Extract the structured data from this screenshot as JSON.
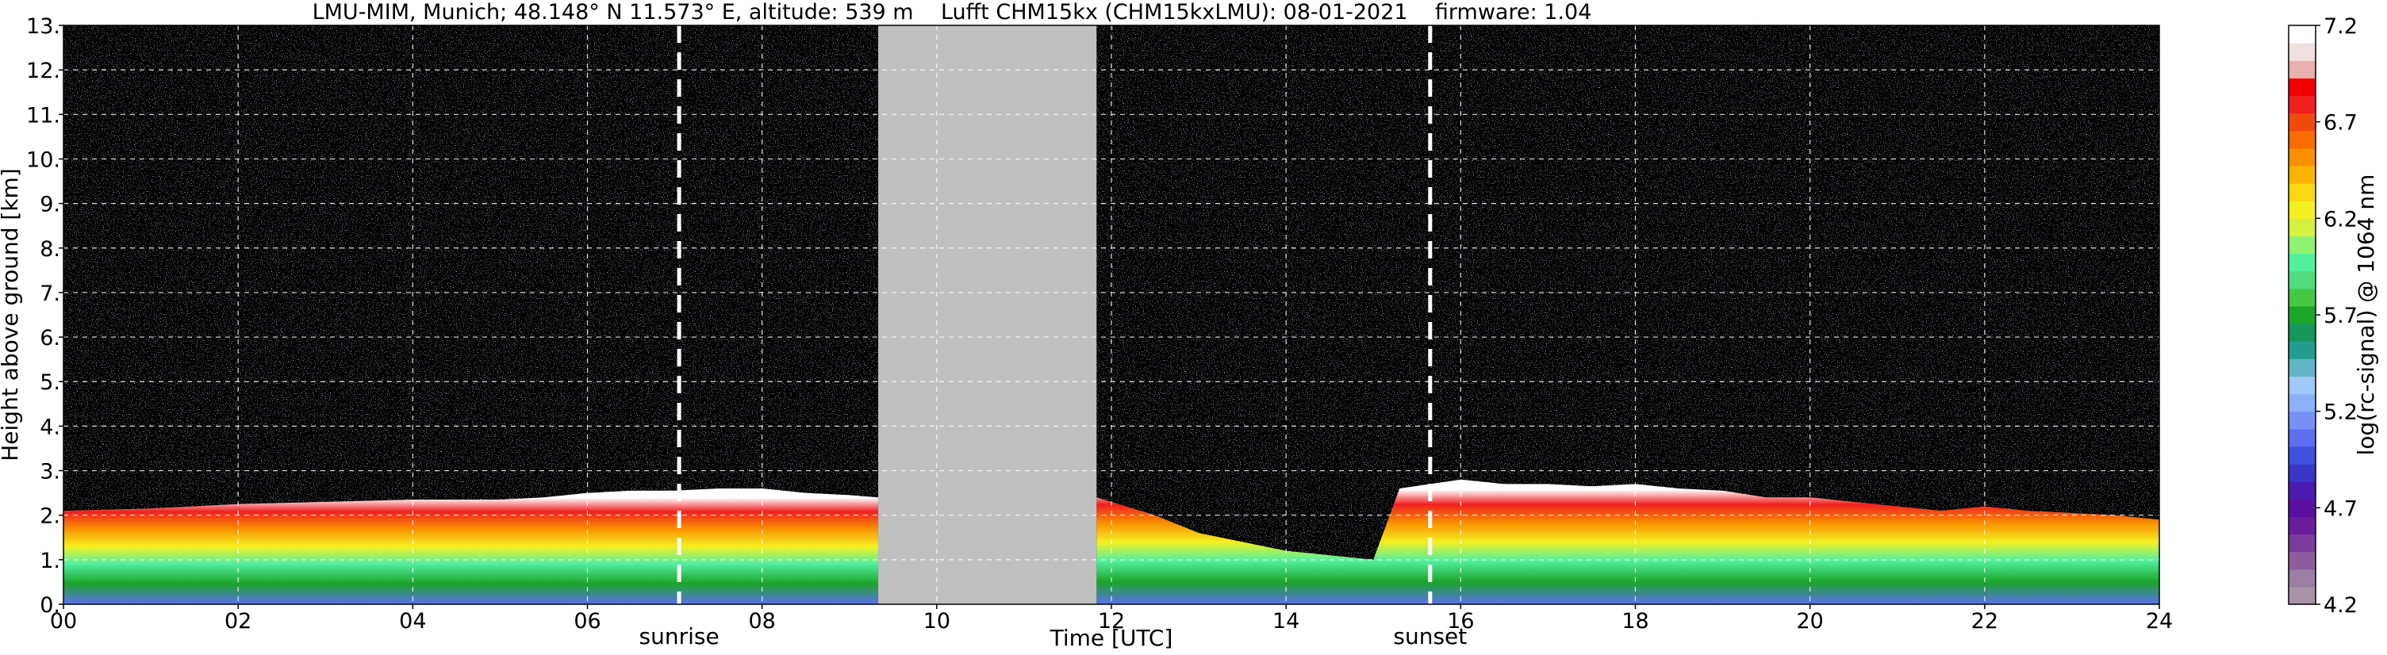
{
  "chart_data": {
    "type": "heatmap",
    "title": "LMU-MIM, Munich; 48.148° N 11.573° E, altitude: 539 m    Lufft CHM15kx (CHM15kxLMU): 08-01-2021    firmware: 1.04",
    "xlabel": "Time [UTC]",
    "ylabel": "Height above ground [km]",
    "xlim": [
      0,
      24
    ],
    "ylim": [
      0,
      13
    ],
    "x_ticks": [
      "00",
      "02",
      "04",
      "06",
      "08",
      "10",
      "12",
      "14",
      "16",
      "18",
      "20",
      "22",
      "24"
    ],
    "x_tick_values": [
      0,
      2,
      4,
      6,
      8,
      10,
      12,
      14,
      16,
      18,
      20,
      22,
      24
    ],
    "y_ticks": [
      "0.",
      "1.",
      "2.",
      "3.",
      "4.",
      "5.",
      "6.",
      "7.",
      "8.",
      "9.",
      "10.",
      "11.",
      "12.",
      "13."
    ],
    "y_tick_values": [
      0,
      1,
      2,
      3,
      4,
      5,
      6,
      7,
      8,
      9,
      10,
      11,
      12,
      13
    ],
    "grid": true,
    "no_data_interval": [
      9.33,
      11.83
    ],
    "markers": [
      {
        "label": "sunrise",
        "x": 7.05
      },
      {
        "label": "sunset",
        "x": 15.65
      }
    ],
    "colorbar": {
      "label": "log(rc-signal) @ 1064 nm",
      "range": [
        4.2,
        7.2
      ],
      "ticks": [
        "4.2",
        "4.7",
        "5.2",
        "5.7",
        "6.2",
        "6.7",
        "7.2"
      ],
      "tick_values": [
        4.2,
        4.7,
        5.2,
        5.7,
        6.2,
        6.7,
        7.2
      ],
      "colors": [
        "#a993a8",
        "#9a7fa3",
        "#8c5e9f",
        "#7b3c9b",
        "#6a1d9a",
        "#5b0f9f",
        "#4a1bb0",
        "#3a35c8",
        "#3f52e0",
        "#5b6ff0",
        "#7790f5",
        "#8eb0f8",
        "#a0c8f8",
        "#63b4c6",
        "#239e8e",
        "#16955c",
        "#1ca52a",
        "#46c845",
        "#4edc7e",
        "#52f0a0",
        "#90f070",
        "#d6f040",
        "#f5f020",
        "#f9d810",
        "#f9b400",
        "#f99000",
        "#f86c00",
        "#f04a10",
        "#f02020",
        "#f20000",
        "#e8b0b0",
        "#f0e0e0",
        "#ffffff"
      ]
    },
    "layers": [
      {
        "name": "boundary layer top",
        "x": [
          0,
          1,
          2,
          3,
          4,
          5,
          5.5,
          6,
          6.5,
          7,
          7.5,
          8,
          8.5,
          9,
          9.33
        ],
        "y": [
          2.1,
          2.15,
          2.25,
          2.3,
          2.35,
          2.35,
          2.4,
          2.5,
          2.55,
          2.55,
          2.6,
          2.6,
          2.5,
          2.45,
          2.4
        ]
      },
      {
        "name": "boundary layer top",
        "x": [
          11.83,
          12.5,
          13,
          13.5,
          14,
          14.5,
          15,
          15.3,
          15.65,
          16,
          16.5,
          17,
          17.5,
          18,
          18.5,
          19,
          19.5,
          20,
          20.5,
          21,
          21.5,
          22,
          22.5,
          23,
          23.5,
          24
        ],
        "y": [
          2.4,
          2.0,
          1.6,
          1.4,
          1.2,
          1.1,
          1.0,
          2.6,
          2.7,
          2.8,
          2.7,
          2.7,
          2.65,
          2.7,
          2.6,
          2.55,
          2.4,
          2.4,
          2.3,
          2.2,
          2.1,
          2.2,
          2.1,
          2.05,
          2.0,
          1.9
        ]
      }
    ]
  }
}
